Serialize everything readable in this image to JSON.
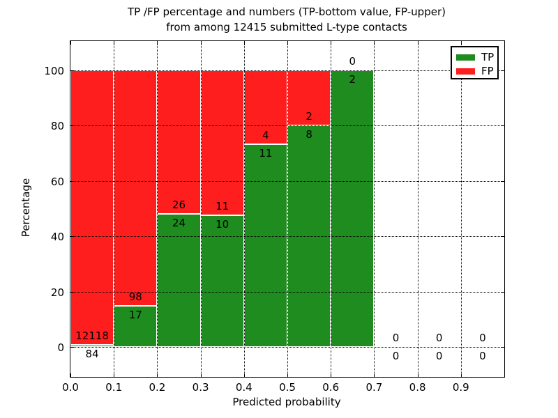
{
  "title": {
    "line1": "TP /FP percentage and numbers (TP-bottom value, FP-upper)",
    "line2": "from among 12415 submitted L-type contacts"
  },
  "chart_data": {
    "type": "bar",
    "stacked": true,
    "orientation": "vertical",
    "title": "TP /FP percentage and numbers (TP-bottom value, FP-upper) from among 12415 submitted L-type contacts",
    "xlabel": "Predicted probability",
    "ylabel": "Percentage",
    "xlim": [
      0.0,
      1.0
    ],
    "ylim": [
      -11,
      111
    ],
    "grid": true,
    "grid_style": "dotted",
    "x_ticks": [
      "0.0",
      "0.1",
      "0.2",
      "0.3",
      "0.4",
      "0.5",
      "0.6",
      "0.7",
      "0.8",
      "0.9"
    ],
    "y_ticks": [
      "0",
      "20",
      "40",
      "60",
      "80",
      "100"
    ],
    "legend": {
      "position": "upper right",
      "entries": [
        {
          "label": "TP",
          "color": "#1e8c1e"
        },
        {
          "label": "FP",
          "color": "#ff1e1e"
        }
      ]
    },
    "bins": [
      {
        "x_start": 0.0,
        "x_end": 0.1,
        "tp": 84,
        "fp": 12118
      },
      {
        "x_start": 0.1,
        "x_end": 0.2,
        "tp": 17,
        "fp": 98
      },
      {
        "x_start": 0.2,
        "x_end": 0.3,
        "tp": 24,
        "fp": 26
      },
      {
        "x_start": 0.3,
        "x_end": 0.4,
        "tp": 10,
        "fp": 11
      },
      {
        "x_start": 0.4,
        "x_end": 0.5,
        "tp": 11,
        "fp": 4
      },
      {
        "x_start": 0.5,
        "x_end": 0.6,
        "tp": 8,
        "fp": 2
      },
      {
        "x_start": 0.6,
        "x_end": 0.7,
        "tp": 2,
        "fp": 0
      },
      {
        "x_start": 0.7,
        "x_end": 0.8,
        "tp": 0,
        "fp": 0
      },
      {
        "x_start": 0.8,
        "x_end": 0.9,
        "tp": 0,
        "fp": 0
      },
      {
        "x_start": 0.9,
        "x_end": 1.0,
        "tp": 0,
        "fp": 0
      }
    ],
    "colors": {
      "tp": "#1e8c1e",
      "fp": "#ff1e1e",
      "bar_edge": "#ffffff",
      "grid": "#000000",
      "text": "#000000"
    }
  }
}
